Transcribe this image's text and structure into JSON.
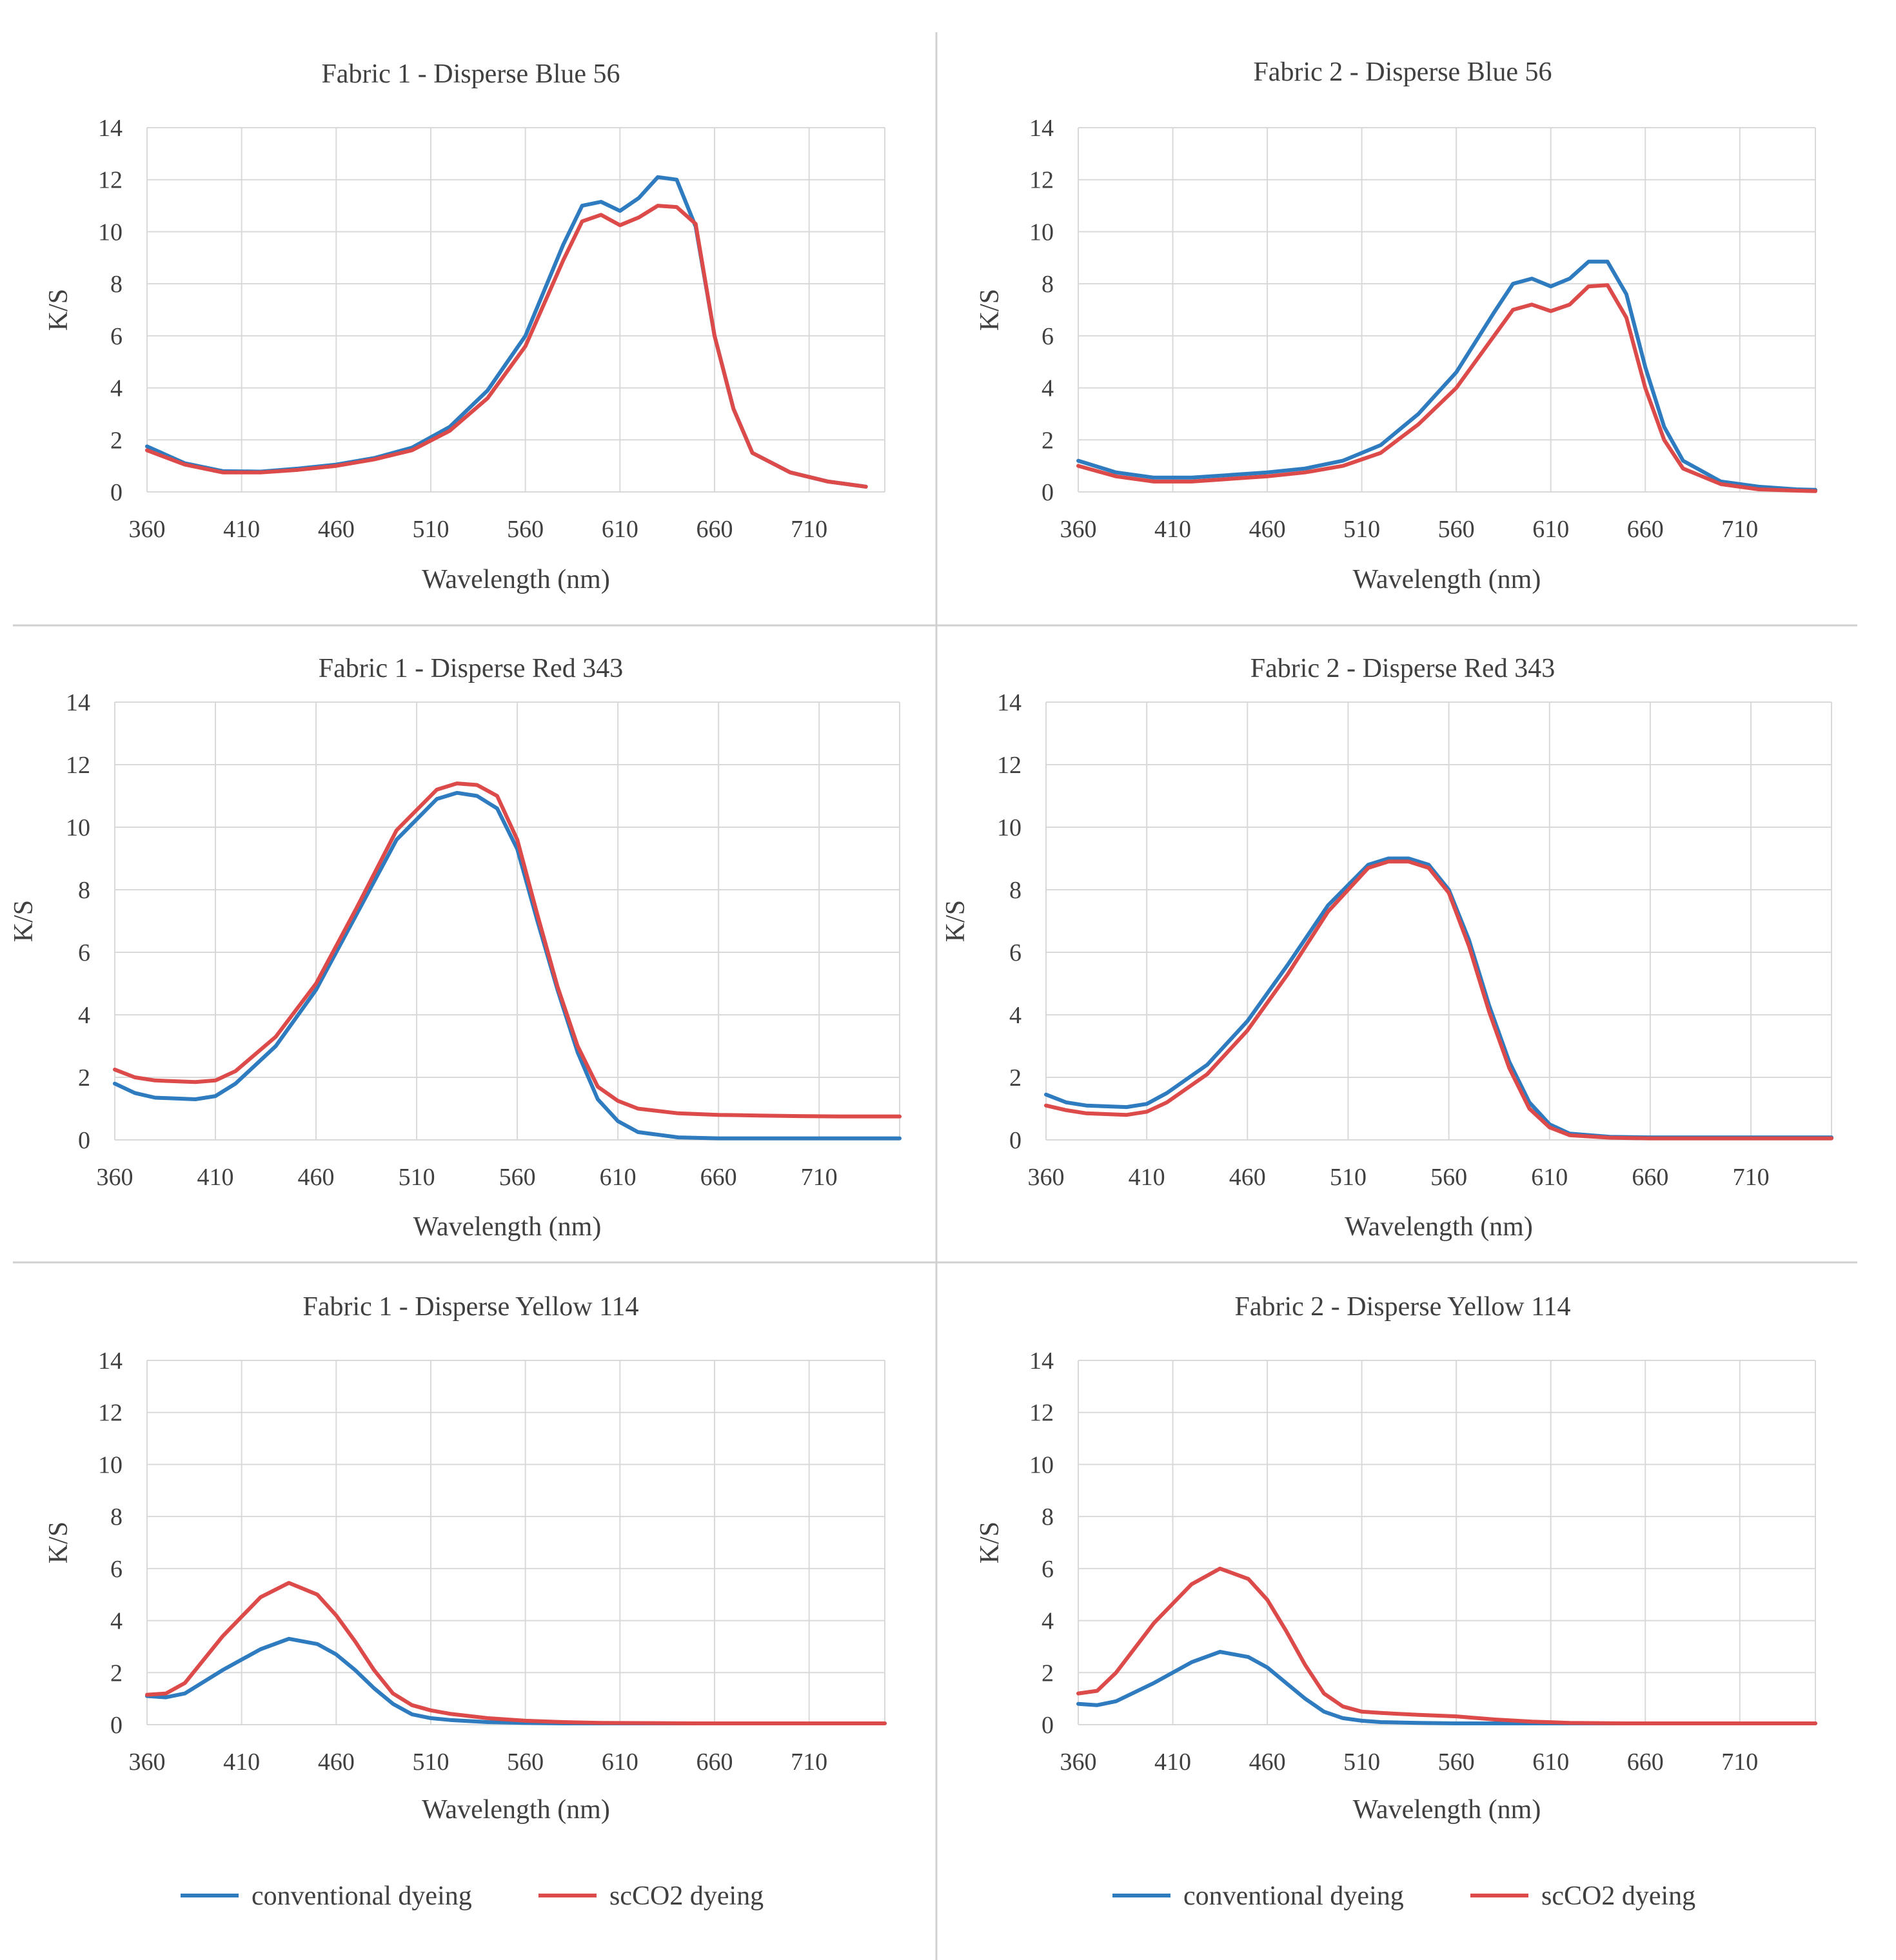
{
  "colors": {
    "conventional": "#2E7BBF",
    "scco2": "#DC4A4A",
    "grid": "#d9d9d9",
    "divider": "#d0d0d0"
  },
  "legend": [
    "conventional dyeing",
    "scCO2 dyeing"
  ],
  "chart_data": [
    {
      "type": "line",
      "title": "Fabric 1 - Disperse Blue 56",
      "xlabel": "Wavelength (nm)",
      "ylabel": "K/S",
      "xlim": [
        360,
        750
      ],
      "ylim": [
        0,
        14
      ],
      "xticks": [
        360,
        410,
        460,
        510,
        560,
        610,
        660,
        710
      ],
      "yticks": [
        0,
        2,
        4,
        6,
        8,
        10,
        12,
        14
      ],
      "grid": true,
      "series": [
        {
          "name": "conventional dyeing",
          "x": [
            360,
            380,
            400,
            420,
            440,
            460,
            480,
            500,
            520,
            540,
            560,
            580,
            590,
            600,
            610,
            620,
            630,
            640,
            650,
            660,
            670,
            680,
            700,
            720,
            740
          ],
          "y": [
            1.75,
            1.1,
            0.8,
            0.78,
            0.9,
            1.05,
            1.3,
            1.7,
            2.5,
            3.9,
            6.0,
            9.5,
            11.0,
            11.15,
            10.8,
            11.3,
            12.1,
            12.0,
            10.2,
            6.0,
            3.2,
            1.5,
            0.75,
            0.4,
            0.2
          ]
        },
        {
          "name": "scCO2 dyeing",
          "x": [
            360,
            380,
            400,
            420,
            440,
            460,
            480,
            500,
            520,
            540,
            560,
            580,
            590,
            600,
            610,
            620,
            630,
            640,
            650,
            660,
            670,
            680,
            700,
            720,
            740
          ],
          "y": [
            1.6,
            1.05,
            0.75,
            0.75,
            0.85,
            1.0,
            1.25,
            1.6,
            2.35,
            3.6,
            5.6,
            8.9,
            10.4,
            10.65,
            10.25,
            10.55,
            11.0,
            10.95,
            10.3,
            6.0,
            3.2,
            1.5,
            0.75,
            0.4,
            0.2
          ]
        }
      ]
    },
    {
      "type": "line",
      "title": "Fabric 2 - Disperse Blue 56",
      "xlabel": "Wavelength (nm)",
      "ylabel": "K/S",
      "xlim": [
        360,
        750
      ],
      "ylim": [
        0,
        14
      ],
      "xticks": [
        360,
        410,
        460,
        510,
        560,
        610,
        660,
        710
      ],
      "yticks": [
        0,
        2,
        4,
        6,
        8,
        10,
        12,
        14
      ],
      "grid": true,
      "series": [
        {
          "name": "conventional dyeing",
          "x": [
            360,
            380,
            400,
            420,
            440,
            460,
            480,
            500,
            520,
            540,
            560,
            580,
            590,
            600,
            610,
            620,
            630,
            640,
            650,
            660,
            670,
            680,
            700,
            720,
            740,
            750
          ],
          "y": [
            1.2,
            0.75,
            0.55,
            0.55,
            0.65,
            0.75,
            0.9,
            1.2,
            1.8,
            3.0,
            4.6,
            6.9,
            8.0,
            8.2,
            7.9,
            8.2,
            8.85,
            8.85,
            7.6,
            4.8,
            2.5,
            1.2,
            0.4,
            0.2,
            0.1,
            0.08
          ]
        },
        {
          "name": "scCO2 dyeing",
          "x": [
            360,
            380,
            400,
            420,
            440,
            460,
            480,
            500,
            520,
            540,
            560,
            580,
            590,
            600,
            610,
            620,
            630,
            640,
            650,
            660,
            670,
            680,
            700,
            720,
            740,
            750
          ],
          "y": [
            1.0,
            0.6,
            0.4,
            0.4,
            0.5,
            0.6,
            0.75,
            1.0,
            1.5,
            2.6,
            4.0,
            6.0,
            7.0,
            7.2,
            6.95,
            7.2,
            7.9,
            7.95,
            6.7,
            4.0,
            2.0,
            0.9,
            0.3,
            0.1,
            0.05,
            0.03
          ]
        }
      ]
    },
    {
      "type": "line",
      "title": "Fabric 1 - Disperse Red 343",
      "xlabel": "Wavelength (nm)",
      "ylabel": "K/S",
      "xlim": [
        360,
        750
      ],
      "ylim": [
        0,
        14
      ],
      "xticks": [
        360,
        410,
        460,
        510,
        560,
        610,
        660,
        710
      ],
      "yticks": [
        0,
        2,
        4,
        6,
        8,
        10,
        12,
        14
      ],
      "grid": true,
      "series": [
        {
          "name": "conventional dyeing",
          "x": [
            360,
            370,
            380,
            400,
            410,
            420,
            440,
            460,
            480,
            500,
            520,
            530,
            540,
            550,
            560,
            570,
            580,
            590,
            600,
            610,
            620,
            640,
            660,
            680,
            700,
            720,
            740,
            750
          ],
          "y": [
            1.8,
            1.5,
            1.35,
            1.3,
            1.4,
            1.8,
            3.0,
            4.8,
            7.2,
            9.6,
            10.9,
            11.1,
            11.0,
            10.6,
            9.3,
            7.0,
            4.8,
            2.8,
            1.3,
            0.6,
            0.25,
            0.08,
            0.05,
            0.05,
            0.05,
            0.05,
            0.05,
            0.05
          ]
        },
        {
          "name": "scCO2 dyeing",
          "x": [
            360,
            370,
            380,
            400,
            410,
            420,
            440,
            460,
            480,
            500,
            520,
            530,
            540,
            550,
            560,
            570,
            580,
            590,
            600,
            610,
            620,
            640,
            660,
            680,
            700,
            720,
            740,
            750
          ],
          "y": [
            2.25,
            2.0,
            1.9,
            1.85,
            1.9,
            2.2,
            3.3,
            5.0,
            7.4,
            9.9,
            11.2,
            11.4,
            11.35,
            11.0,
            9.6,
            7.2,
            4.9,
            3.0,
            1.7,
            1.25,
            1.0,
            0.85,
            0.8,
            0.78,
            0.76,
            0.75,
            0.75,
            0.75
          ]
        }
      ]
    },
    {
      "type": "line",
      "title": "Fabric 2 - Disperse Red 343",
      "xlabel": "Wavelength (nm)",
      "ylabel": "K/S",
      "xlim": [
        360,
        750
      ],
      "ylim": [
        0,
        14
      ],
      "xticks": [
        360,
        410,
        460,
        510,
        560,
        610,
        660,
        710
      ],
      "yticks": [
        0,
        2,
        4,
        6,
        8,
        10,
        12,
        14
      ],
      "grid": true,
      "series": [
        {
          "name": "conventional dyeing",
          "x": [
            360,
            370,
            380,
            400,
            410,
            420,
            440,
            460,
            480,
            500,
            520,
            530,
            540,
            550,
            560,
            570,
            580,
            590,
            600,
            610,
            620,
            640,
            660,
            700,
            750
          ],
          "y": [
            1.45,
            1.2,
            1.1,
            1.05,
            1.15,
            1.5,
            2.4,
            3.8,
            5.6,
            7.5,
            8.8,
            9.0,
            9.0,
            8.8,
            8.0,
            6.4,
            4.3,
            2.5,
            1.2,
            0.5,
            0.2,
            0.1,
            0.08,
            0.08,
            0.08
          ]
        },
        {
          "name": "scCO2 dyeing",
          "x": [
            360,
            370,
            380,
            400,
            410,
            420,
            440,
            460,
            480,
            500,
            520,
            530,
            540,
            550,
            560,
            570,
            580,
            590,
            600,
            610,
            620,
            640,
            660,
            700,
            750
          ],
          "y": [
            1.1,
            0.95,
            0.85,
            0.8,
            0.9,
            1.2,
            2.1,
            3.5,
            5.3,
            7.3,
            8.7,
            8.9,
            8.9,
            8.7,
            7.9,
            6.2,
            4.1,
            2.3,
            1.0,
            0.4,
            0.15,
            0.07,
            0.05,
            0.05,
            0.05
          ]
        }
      ]
    },
    {
      "type": "line",
      "title": "Fabric 1 - Disperse Yellow 114",
      "xlabel": "Wavelength (nm)",
      "ylabel": "K/S",
      "xlim": [
        360,
        750
      ],
      "ylim": [
        0,
        14
      ],
      "xticks": [
        360,
        410,
        460,
        510,
        560,
        610,
        660,
        710
      ],
      "yticks": [
        0,
        2,
        4,
        6,
        8,
        10,
        12,
        14
      ],
      "grid": true,
      "series": [
        {
          "name": "conventional dyeing",
          "x": [
            360,
            370,
            380,
            400,
            420,
            435,
            450,
            460,
            470,
            480,
            490,
            500,
            510,
            520,
            540,
            560,
            580,
            600,
            650,
            700,
            750
          ],
          "y": [
            1.1,
            1.05,
            1.2,
            2.1,
            2.9,
            3.3,
            3.1,
            2.7,
            2.1,
            1.4,
            0.8,
            0.4,
            0.25,
            0.18,
            0.1,
            0.07,
            0.05,
            0.05,
            0.05,
            0.05,
            0.05
          ]
        },
        {
          "name": "scCO2 dyeing",
          "x": [
            360,
            370,
            380,
            400,
            420,
            435,
            450,
            460,
            470,
            480,
            490,
            500,
            510,
            520,
            540,
            560,
            580,
            600,
            650,
            700,
            750
          ],
          "y": [
            1.15,
            1.2,
            1.6,
            3.4,
            4.9,
            5.45,
            5.0,
            4.2,
            3.2,
            2.1,
            1.2,
            0.75,
            0.55,
            0.42,
            0.25,
            0.15,
            0.1,
            0.07,
            0.05,
            0.05,
            0.05
          ]
        }
      ]
    },
    {
      "type": "line",
      "title": "Fabric 2 - Disperse Yellow 114",
      "xlabel": "Wavelength (nm)",
      "ylabel": "K/S",
      "xlim": [
        360,
        750
      ],
      "ylim": [
        0,
        14
      ],
      "xticks": [
        360,
        410,
        460,
        510,
        560,
        610,
        660,
        710
      ],
      "yticks": [
        0,
        2,
        4,
        6,
        8,
        10,
        12,
        14
      ],
      "grid": true,
      "series": [
        {
          "name": "conventional dyeing",
          "x": [
            360,
            370,
            380,
            400,
            420,
            435,
            450,
            460,
            470,
            480,
            490,
            500,
            510,
            520,
            540,
            560,
            580,
            600,
            650,
            700,
            750
          ],
          "y": [
            0.8,
            0.75,
            0.9,
            1.6,
            2.4,
            2.8,
            2.6,
            2.2,
            1.6,
            1.0,
            0.5,
            0.25,
            0.15,
            0.1,
            0.07,
            0.05,
            0.05,
            0.05,
            0.05,
            0.05,
            0.05
          ]
        },
        {
          "name": "scCO2 dyeing",
          "x": [
            360,
            370,
            380,
            400,
            420,
            435,
            450,
            460,
            470,
            480,
            490,
            500,
            510,
            520,
            540,
            560,
            580,
            600,
            620,
            650,
            700,
            750
          ],
          "y": [
            1.2,
            1.3,
            2.0,
            3.9,
            5.4,
            6.0,
            5.6,
            4.8,
            3.6,
            2.3,
            1.2,
            0.7,
            0.5,
            0.45,
            0.38,
            0.32,
            0.2,
            0.12,
            0.07,
            0.05,
            0.05,
            0.05
          ]
        }
      ]
    }
  ]
}
